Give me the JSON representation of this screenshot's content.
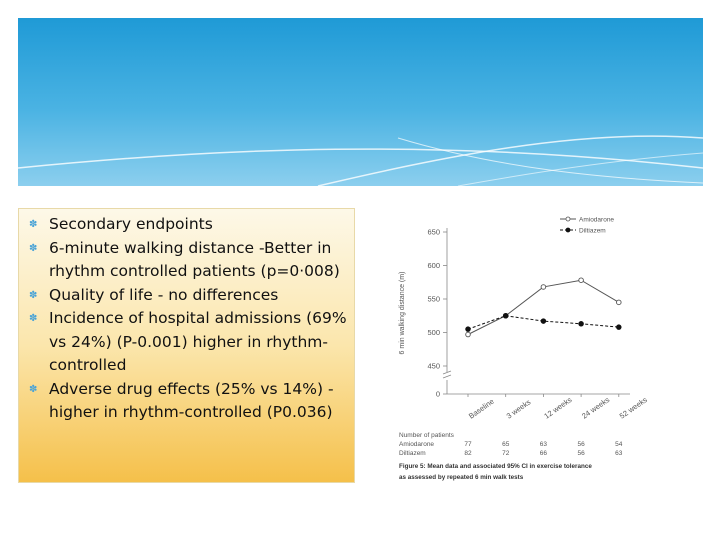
{
  "slide": {
    "bullets": [
      "Secondary endpoints",
      "6-minute walking distance -Better in rhythm controlled patients (p=0·008)",
      "Quality of life - no differences",
      "Incidence of hospital admissions (69% vs 24%) (P-0.001) higher in rhythm-controlled",
      "Adverse drug effects (25% vs 14%) - higher in rhythm-controlled (P0.036)"
    ]
  },
  "chart_data": {
    "type": "line",
    "y_label": "6 min walking distance (m)",
    "categories": [
      "Baseline",
      "3 weeks",
      "12 weeks",
      "24 weeks",
      "52 weeks"
    ],
    "series": [
      {
        "name": "Amiodarone",
        "color": "#555555",
        "style": "solid",
        "marker": "open",
        "values": [
          497,
          525,
          568,
          578,
          545
        ]
      },
      {
        "name": "Diltiazem",
        "color": "#111111",
        "style": "dashed",
        "marker": "filled",
        "values": [
          505,
          525,
          517,
          513,
          508
        ]
      }
    ],
    "ylim": [
      0,
      650
    ],
    "yticks": [
      0,
      450,
      500,
      550,
      600,
      650
    ],
    "axis_break": true,
    "patients_label": "Number of patients",
    "patients": [
      {
        "name": "Amiodarone",
        "values": [
          77,
          65,
          63,
          56,
          54
        ]
      },
      {
        "name": "Diltiazem",
        "values": [
          82,
          72,
          66,
          56,
          63
        ]
      }
    ],
    "caption": [
      "Figure 5: Mean data and associated 95% CI in exercise tolerance",
      "as assessed by repeated 6 min walk tests"
    ]
  }
}
